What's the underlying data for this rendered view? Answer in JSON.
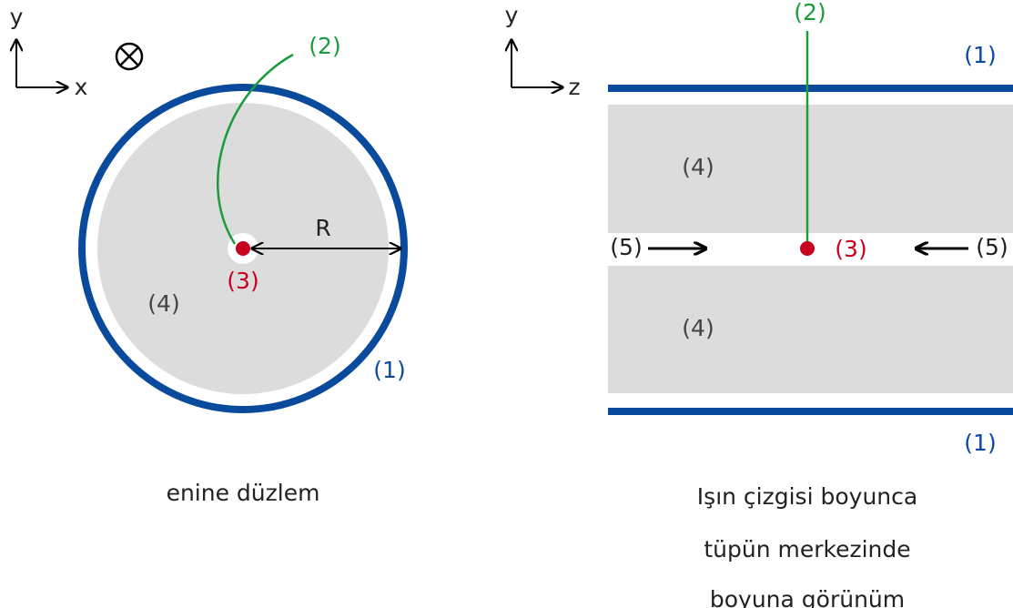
{
  "left": {
    "axis_y": "y",
    "axis_x": "x",
    "label_2": "(2)",
    "label_R": "R",
    "label_3": "(3)",
    "label_4": "(4)",
    "label_1": "(1)",
    "caption": "enine düzlem"
  },
  "right": {
    "axis_y": "y",
    "axis_z": "z",
    "label_2": "(2)",
    "label_1_top": "(1)",
    "label_4_top": "(4)",
    "label_5_left": "(5)",
    "label_3": "(3)",
    "label_5_right": "(5)",
    "label_4_bottom": "(4)",
    "label_1_bottom": "(1)",
    "caption": [
      "Işın çizgisi boyunca",
      "tüpün merkezinde",
      "boyuna görünüm"
    ]
  }
}
